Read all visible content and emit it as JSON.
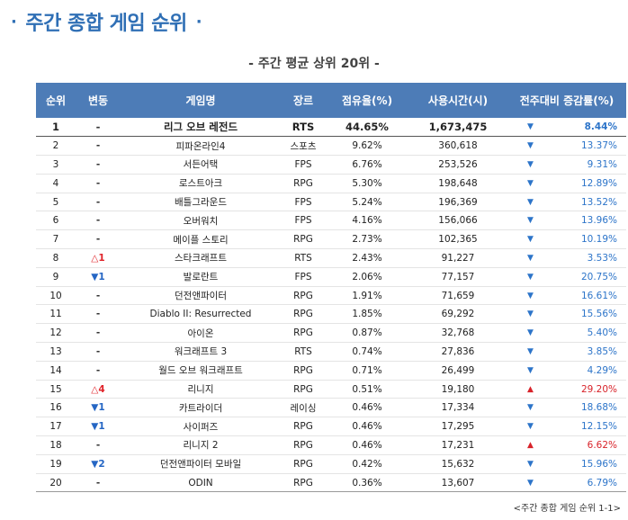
{
  "title": "주간 종합 게임 순위",
  "title_dots": [
    "·",
    "·"
  ],
  "subtitle": "- 주간 평균 상위 20위 -",
  "colors": {
    "header_bg": "#4d7cb7",
    "title": "#2f6fb5",
    "up": "#e0242a",
    "down": "#2566c4"
  },
  "columns": [
    "순위",
    "변동",
    "게임명",
    "장르",
    "점유율(%)",
    "사용시간(시)",
    "전주대비 증감률(%)"
  ],
  "rows": [
    {
      "rank": "1",
      "change": "-",
      "change_dir": "same",
      "name": "리그 오브 레전드",
      "genre": "RTS",
      "share": "44.65%",
      "hours": "1,673,475",
      "trend": "down",
      "trend_pct": "8.44%"
    },
    {
      "rank": "2",
      "change": "-",
      "change_dir": "same",
      "name": "피파온라인4",
      "genre": "스포츠",
      "share": "9.62%",
      "hours": "360,618",
      "trend": "down",
      "trend_pct": "13.37%"
    },
    {
      "rank": "3",
      "change": "-",
      "change_dir": "same",
      "name": "서든어택",
      "genre": "FPS",
      "share": "6.76%",
      "hours": "253,526",
      "trend": "down",
      "trend_pct": "9.31%"
    },
    {
      "rank": "4",
      "change": "-",
      "change_dir": "same",
      "name": "로스트아크",
      "genre": "RPG",
      "share": "5.30%",
      "hours": "198,648",
      "trend": "down",
      "trend_pct": "12.89%"
    },
    {
      "rank": "5",
      "change": "-",
      "change_dir": "same",
      "name": "배틀그라운드",
      "genre": "FPS",
      "share": "5.24%",
      "hours": "196,369",
      "trend": "down",
      "trend_pct": "13.52%"
    },
    {
      "rank": "6",
      "change": "-",
      "change_dir": "same",
      "name": "오버워치",
      "genre": "FPS",
      "share": "4.16%",
      "hours": "156,066",
      "trend": "down",
      "trend_pct": "13.96%"
    },
    {
      "rank": "7",
      "change": "-",
      "change_dir": "same",
      "name": "메이플 스토리",
      "genre": "RPG",
      "share": "2.73%",
      "hours": "102,365",
      "trend": "down",
      "trend_pct": "10.19%"
    },
    {
      "rank": "8",
      "change": "△1",
      "change_dir": "up",
      "name": "스타크래프트",
      "genre": "RTS",
      "share": "2.43%",
      "hours": "91,227",
      "trend": "down",
      "trend_pct": "3.53%"
    },
    {
      "rank": "9",
      "change": "▼1",
      "change_dir": "down",
      "name": "발로란트",
      "genre": "FPS",
      "share": "2.06%",
      "hours": "77,157",
      "trend": "down",
      "trend_pct": "20.75%"
    },
    {
      "rank": "10",
      "change": "-",
      "change_dir": "same",
      "name": "던전앤파이터",
      "genre": "RPG",
      "share": "1.91%",
      "hours": "71,659",
      "trend": "down",
      "trend_pct": "16.61%"
    },
    {
      "rank": "11",
      "change": "-",
      "change_dir": "same",
      "name": "Diablo II: Resurrected",
      "genre": "RPG",
      "share": "1.85%",
      "hours": "69,292",
      "trend": "down",
      "trend_pct": "15.56%"
    },
    {
      "rank": "12",
      "change": "-",
      "change_dir": "same",
      "name": "아이온",
      "genre": "RPG",
      "share": "0.87%",
      "hours": "32,768",
      "trend": "down",
      "trend_pct": "5.40%"
    },
    {
      "rank": "13",
      "change": "-",
      "change_dir": "same",
      "name": "워크래프트 3",
      "genre": "RTS",
      "share": "0.74%",
      "hours": "27,836",
      "trend": "down",
      "trend_pct": "3.85%"
    },
    {
      "rank": "14",
      "change": "-",
      "change_dir": "same",
      "name": "월드 오브 워크래프트",
      "genre": "RPG",
      "share": "0.71%",
      "hours": "26,499",
      "trend": "down",
      "trend_pct": "4.29%"
    },
    {
      "rank": "15",
      "change": "△4",
      "change_dir": "up",
      "name": "리니지",
      "genre": "RPG",
      "share": "0.51%",
      "hours": "19,180",
      "trend": "up",
      "trend_pct": "29.20%"
    },
    {
      "rank": "16",
      "change": "▼1",
      "change_dir": "down",
      "name": "카트라이더",
      "genre": "레이싱",
      "share": "0.46%",
      "hours": "17,334",
      "trend": "down",
      "trend_pct": "18.68%"
    },
    {
      "rank": "17",
      "change": "▼1",
      "change_dir": "down",
      "name": "사이퍼즈",
      "genre": "RPG",
      "share": "0.46%",
      "hours": "17,295",
      "trend": "down",
      "trend_pct": "12.15%"
    },
    {
      "rank": "18",
      "change": "-",
      "change_dir": "same",
      "name": "리니지 2",
      "genre": "RPG",
      "share": "0.46%",
      "hours": "17,231",
      "trend": "up",
      "trend_pct": "6.62%"
    },
    {
      "rank": "19",
      "change": "▼2",
      "change_dir": "down",
      "name": "던전앤파이터 모바일",
      "genre": "RPG",
      "share": "0.42%",
      "hours": "15,632",
      "trend": "down",
      "trend_pct": "15.96%"
    },
    {
      "rank": "20",
      "change": "-",
      "change_dir": "same",
      "name": "ODIN",
      "genre": "RPG",
      "share": "0.36%",
      "hours": "13,607",
      "trend": "down",
      "trend_pct": "6.79%"
    }
  ],
  "caption": "<주간 종합 게임 순위 1-1>"
}
